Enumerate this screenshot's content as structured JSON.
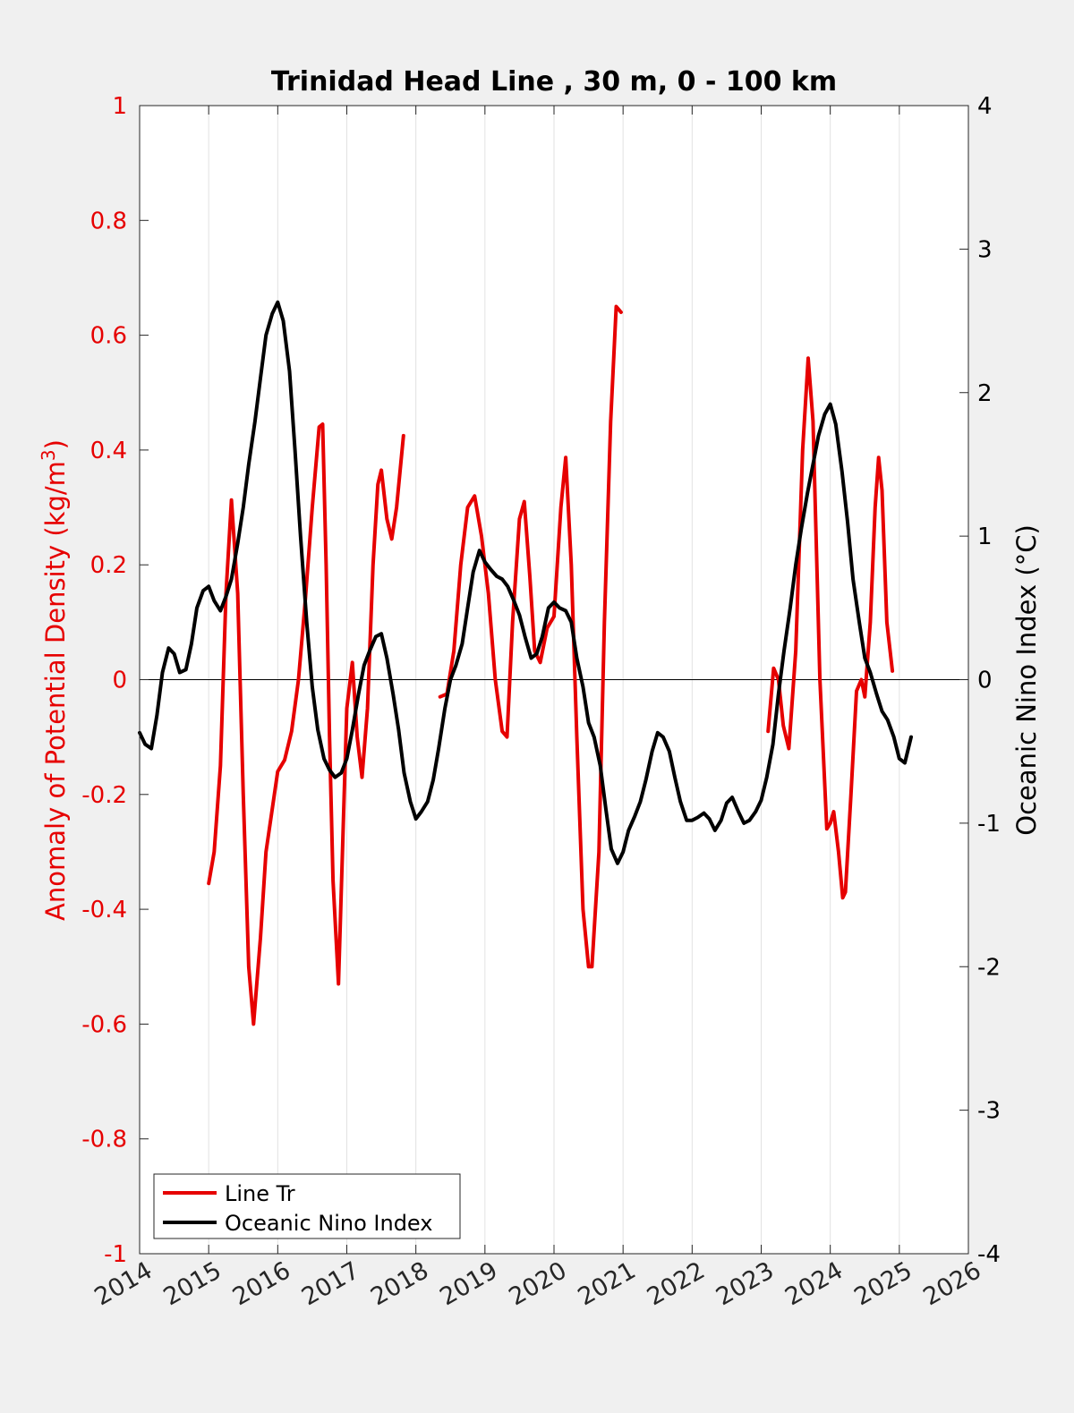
{
  "chart_data": {
    "type": "line",
    "title": "Trinidad Head Line , 30 m, 0 - 100 km",
    "xlabel": "",
    "ylabel_left": "Anomaly of Potential Density (kg/m",
    "ylabel_left_sup": "3",
    "ylabel_left_end": ")",
    "ylabel_right": "Oceanic Nino Index (°C)",
    "xlim": [
      2014,
      2026
    ],
    "ylim_left": [
      -1,
      1
    ],
    "ylim_right": [
      -4,
      4
    ],
    "x_ticks": [
      "2014",
      "2015",
      "2016",
      "2017",
      "2018",
      "2019",
      "2020",
      "2021",
      "2022",
      "2023",
      "2024",
      "2025",
      "2026"
    ],
    "y_left_ticks": [
      "-1",
      "-0.8",
      "-0.6",
      "-0.4",
      "-0.2",
      "0",
      "0.2",
      "0.4",
      "0.6",
      "0.8",
      "1"
    ],
    "y_right_ticks": [
      "-4",
      "-3",
      "-2",
      "-1",
      "0",
      "1",
      "2",
      "3",
      "4"
    ],
    "grid": "vertical",
    "legend_position": "bottom-left",
    "colors": {
      "line_tr": "#e60000",
      "oni": "#000000",
      "left_axis": "#e60000",
      "right_axis": "#000000",
      "grid": "#e2e2e2"
    },
    "series": [
      {
        "name": "Line Tr",
        "axis": "left",
        "color": "#e60000",
        "segments": [
          [
            [
              2015.0,
              -0.355
            ],
            [
              2015.08,
              -0.3
            ],
            [
              2015.17,
              -0.15
            ],
            [
              2015.25,
              0.15
            ],
            [
              2015.33,
              0.313
            ],
            [
              2015.42,
              0.15
            ],
            [
              2015.5,
              -0.2
            ],
            [
              2015.58,
              -0.5
            ],
            [
              2015.65,
              -0.6
            ],
            [
              2015.75,
              -0.45
            ],
            [
              2015.83,
              -0.3
            ],
            [
              2016.0,
              -0.16
            ],
            [
              2016.1,
              -0.14
            ],
            [
              2016.2,
              -0.09
            ],
            [
              2016.3,
              0.0
            ],
            [
              2016.4,
              0.14
            ],
            [
              2016.5,
              0.3
            ],
            [
              2016.6,
              0.44
            ],
            [
              2016.65,
              0.445
            ],
            [
              2016.7,
              0.2
            ],
            [
              2016.75,
              -0.1
            ],
            [
              2016.8,
              -0.35
            ],
            [
              2016.88,
              -0.53
            ],
            [
              2016.95,
              -0.25
            ],
            [
              2017.0,
              -0.05
            ],
            [
              2017.08,
              0.03
            ],
            [
              2017.15,
              -0.1
            ],
            [
              2017.22,
              -0.17
            ],
            [
              2017.3,
              -0.05
            ],
            [
              2017.38,
              0.2
            ],
            [
              2017.45,
              0.34
            ],
            [
              2017.5,
              0.365
            ],
            [
              2017.58,
              0.28
            ],
            [
              2017.65,
              0.245
            ],
            [
              2017.72,
              0.3
            ],
            [
              2017.82,
              0.425
            ]
          ],
          [
            [
              2018.35,
              -0.03
            ],
            [
              2018.45,
              -0.025
            ],
            [
              2018.55,
              0.05
            ],
            [
              2018.65,
              0.2
            ],
            [
              2018.75,
              0.3
            ],
            [
              2018.85,
              0.32
            ],
            [
              2018.95,
              0.25
            ],
            [
              2019.05,
              0.15
            ],
            [
              2019.15,
              0.0
            ],
            [
              2019.25,
              -0.09
            ],
            [
              2019.32,
              -0.1
            ],
            [
              2019.4,
              0.1
            ],
            [
              2019.5,
              0.28
            ],
            [
              2019.57,
              0.31
            ],
            [
              2019.65,
              0.18
            ],
            [
              2019.72,
              0.05
            ],
            [
              2019.8,
              0.03
            ],
            [
              2019.9,
              0.09
            ],
            [
              2020.0,
              0.11
            ],
            [
              2020.1,
              0.3
            ],
            [
              2020.17,
              0.387
            ],
            [
              2020.25,
              0.2
            ],
            [
              2020.33,
              -0.1
            ],
            [
              2020.42,
              -0.4
            ],
            [
              2020.5,
              -0.5
            ],
            [
              2020.55,
              -0.5
            ],
            [
              2020.65,
              -0.3
            ],
            [
              2020.73,
              0.1
            ],
            [
              2020.82,
              0.45
            ],
            [
              2020.9,
              0.65
            ],
            [
              2020.97,
              0.64
            ]
          ],
          [
            [
              2023.1,
              -0.09
            ],
            [
              2023.18,
              0.02
            ],
            [
              2023.25,
              0.0
            ],
            [
              2023.32,
              -0.08
            ],
            [
              2023.4,
              -0.12
            ],
            [
              2023.5,
              0.05
            ],
            [
              2023.6,
              0.4
            ],
            [
              2023.68,
              0.56
            ],
            [
              2023.75,
              0.45
            ],
            [
              2023.85,
              0.0
            ],
            [
              2023.95,
              -0.26
            ],
            [
              2024.0,
              -0.25
            ],
            [
              2024.05,
              -0.23
            ],
            [
              2024.12,
              -0.3
            ],
            [
              2024.18,
              -0.38
            ],
            [
              2024.22,
              -0.37
            ],
            [
              2024.3,
              -0.2
            ],
            [
              2024.38,
              -0.02
            ],
            [
              2024.45,
              0.0
            ],
            [
              2024.5,
              -0.03
            ],
            [
              2024.58,
              0.1
            ],
            [
              2024.65,
              0.3
            ],
            [
              2024.7,
              0.387
            ],
            [
              2024.75,
              0.33
            ],
            [
              2024.82,
              0.1
            ],
            [
              2024.9,
              0.015
            ]
          ]
        ]
      },
      {
        "name": "Oceanic Nino Index",
        "axis": "right",
        "color": "#000000",
        "segments": [
          [
            [
              2014.0,
              -0.37
            ],
            [
              2014.08,
              -0.45
            ],
            [
              2014.17,
              -0.48
            ],
            [
              2014.25,
              -0.25
            ],
            [
              2014.33,
              0.05
            ],
            [
              2014.42,
              0.22
            ],
            [
              2014.5,
              0.18
            ],
            [
              2014.58,
              0.05
            ],
            [
              2014.67,
              0.07
            ],
            [
              2014.75,
              0.25
            ],
            [
              2014.83,
              0.5
            ],
            [
              2014.92,
              0.62
            ],
            [
              2015.0,
              0.65
            ],
            [
              2015.08,
              0.55
            ],
            [
              2015.17,
              0.48
            ],
            [
              2015.25,
              0.58
            ],
            [
              2015.33,
              0.7
            ],
            [
              2015.42,
              0.95
            ],
            [
              2015.5,
              1.2
            ],
            [
              2015.58,
              1.5
            ],
            [
              2015.67,
              1.8
            ],
            [
              2015.75,
              2.1
            ],
            [
              2015.83,
              2.4
            ],
            [
              2015.92,
              2.55
            ],
            [
              2016.0,
              2.63
            ],
            [
              2016.08,
              2.5
            ],
            [
              2016.17,
              2.15
            ],
            [
              2016.25,
              1.6
            ],
            [
              2016.33,
              1.0
            ],
            [
              2016.42,
              0.4
            ],
            [
              2016.5,
              -0.05
            ],
            [
              2016.58,
              -0.35
            ],
            [
              2016.67,
              -0.55
            ],
            [
              2016.75,
              -0.63
            ],
            [
              2016.83,
              -0.68
            ],
            [
              2016.92,
              -0.65
            ],
            [
              2017.0,
              -0.55
            ],
            [
              2017.08,
              -0.35
            ],
            [
              2017.17,
              -0.1
            ],
            [
              2017.25,
              0.1
            ],
            [
              2017.33,
              0.2
            ],
            [
              2017.42,
              0.3
            ],
            [
              2017.5,
              0.32
            ],
            [
              2017.58,
              0.15
            ],
            [
              2017.67,
              -0.1
            ],
            [
              2017.75,
              -0.35
            ],
            [
              2017.83,
              -0.65
            ],
            [
              2017.92,
              -0.85
            ],
            [
              2018.0,
              -0.97
            ],
            [
              2018.08,
              -0.92
            ],
            [
              2018.17,
              -0.85
            ],
            [
              2018.25,
              -0.7
            ],
            [
              2018.33,
              -0.48
            ],
            [
              2018.42,
              -0.2
            ],
            [
              2018.5,
              0.0
            ],
            [
              2018.58,
              0.1
            ],
            [
              2018.67,
              0.25
            ],
            [
              2018.75,
              0.5
            ],
            [
              2018.83,
              0.75
            ],
            [
              2018.92,
              0.9
            ],
            [
              2019.0,
              0.82
            ],
            [
              2019.08,
              0.77
            ],
            [
              2019.17,
              0.72
            ],
            [
              2019.25,
              0.7
            ],
            [
              2019.33,
              0.65
            ],
            [
              2019.42,
              0.55
            ],
            [
              2019.5,
              0.45
            ],
            [
              2019.58,
              0.3
            ],
            [
              2019.67,
              0.15
            ],
            [
              2019.75,
              0.18
            ],
            [
              2019.83,
              0.3
            ],
            [
              2019.92,
              0.5
            ],
            [
              2020.0,
              0.54
            ],
            [
              2020.08,
              0.5
            ],
            [
              2020.17,
              0.48
            ],
            [
              2020.25,
              0.4
            ],
            [
              2020.33,
              0.15
            ],
            [
              2020.42,
              -0.05
            ],
            [
              2020.5,
              -0.3
            ],
            [
              2020.58,
              -0.4
            ],
            [
              2020.67,
              -0.6
            ],
            [
              2020.75,
              -0.9
            ],
            [
              2020.83,
              -1.18
            ],
            [
              2020.92,
              -1.28
            ],
            [
              2021.0,
              -1.2
            ],
            [
              2021.08,
              -1.05
            ],
            [
              2021.17,
              -0.95
            ],
            [
              2021.25,
              -0.85
            ],
            [
              2021.33,
              -0.7
            ],
            [
              2021.42,
              -0.5
            ],
            [
              2021.5,
              -0.37
            ],
            [
              2021.58,
              -0.4
            ],
            [
              2021.67,
              -0.5
            ],
            [
              2021.75,
              -0.68
            ],
            [
              2021.83,
              -0.85
            ],
            [
              2021.92,
              -0.98
            ],
            [
              2022.0,
              -0.98
            ],
            [
              2022.08,
              -0.96
            ],
            [
              2022.17,
              -0.93
            ],
            [
              2022.25,
              -0.97
            ],
            [
              2022.33,
              -1.05
            ],
            [
              2022.42,
              -0.98
            ],
            [
              2022.5,
              -0.86
            ],
            [
              2022.58,
              -0.82
            ],
            [
              2022.67,
              -0.92
            ],
            [
              2022.75,
              -1.0
            ],
            [
              2022.83,
              -0.98
            ],
            [
              2022.92,
              -0.92
            ],
            [
              2023.0,
              -0.84
            ],
            [
              2023.08,
              -0.68
            ],
            [
              2023.17,
              -0.45
            ],
            [
              2023.25,
              -0.1
            ],
            [
              2023.33,
              0.2
            ],
            [
              2023.42,
              0.5
            ],
            [
              2023.5,
              0.8
            ],
            [
              2023.58,
              1.05
            ],
            [
              2023.67,
              1.3
            ],
            [
              2023.75,
              1.5
            ],
            [
              2023.83,
              1.7
            ],
            [
              2023.92,
              1.85
            ],
            [
              2024.0,
              1.92
            ],
            [
              2024.08,
              1.78
            ],
            [
              2024.17,
              1.45
            ],
            [
              2024.25,
              1.1
            ],
            [
              2024.33,
              0.7
            ],
            [
              2024.42,
              0.4
            ],
            [
              2024.5,
              0.15
            ],
            [
              2024.58,
              0.05
            ],
            [
              2024.67,
              -0.1
            ],
            [
              2024.75,
              -0.22
            ],
            [
              2024.83,
              -0.28
            ],
            [
              2024.92,
              -0.4
            ],
            [
              2025.0,
              -0.55
            ],
            [
              2025.08,
              -0.58
            ],
            [
              2025.17,
              -0.4
            ]
          ]
        ]
      }
    ]
  }
}
